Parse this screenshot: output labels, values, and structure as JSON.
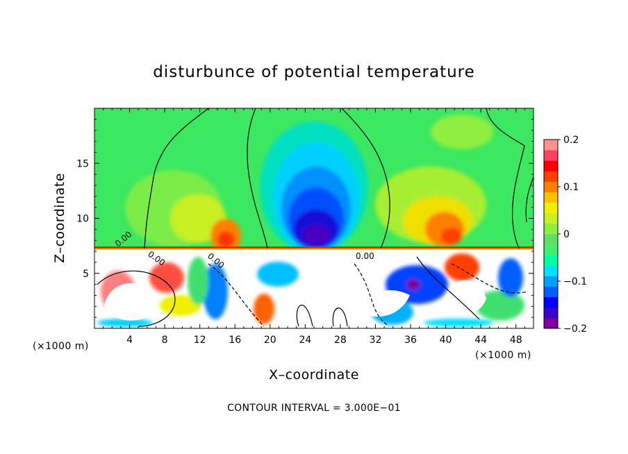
{
  "chart_data": {
    "type": "heatmap",
    "title": "disturbunce of potential temperature",
    "xlabel": "X–coordinate",
    "ylabel": "Z–coordinate",
    "x_unit_left": "(×1000 m)",
    "x_unit_right": "(×1000 m)",
    "xlim": [
      0,
      50
    ],
    "ylim": [
      0,
      20
    ],
    "x_ticks": [
      4,
      8,
      12,
      16,
      20,
      24,
      28,
      32,
      36,
      40,
      44,
      48
    ],
    "y_ticks": [
      5,
      10,
      15
    ],
    "colorbar": {
      "range": [
        -0.2,
        0.2
      ],
      "ticks": [
        {
          "value": 0.2,
          "label": "0.2"
        },
        {
          "value": 0.1,
          "label": "0.1"
        },
        {
          "value": 0,
          "label": "0"
        },
        {
          "value": -0.1,
          "label": "−0.1"
        },
        {
          "value": -0.2,
          "label": "−0.2"
        }
      ],
      "colors": [
        "#7f009f",
        "#3c00cf",
        "#0000ff",
        "#0060ff",
        "#00a0ff",
        "#00e0ff",
        "#00ffa0",
        "#40f070",
        "#60e060",
        "#90ee40",
        "#c8f020",
        "#f0f000",
        "#ffc000",
        "#ff8000",
        "#ff4000",
        "#ff0000",
        "#ff4060",
        "#ff9090"
      ]
    },
    "contour_labels": [
      "0.00",
      "0.00",
      "0.00",
      "0.00"
    ],
    "contour_interval_text": "CONTOUR INTERVAL = 3.000E−01"
  }
}
